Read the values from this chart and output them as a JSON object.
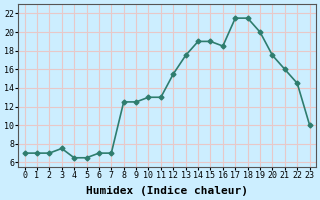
{
  "x": [
    0,
    1,
    2,
    3,
    4,
    5,
    6,
    7,
    8,
    9,
    10,
    11,
    12,
    13,
    14,
    15,
    16,
    17,
    18,
    19,
    20,
    21,
    22,
    23
  ],
  "y": [
    7.0,
    7.0,
    7.0,
    7.5,
    6.5,
    6.5,
    7.0,
    7.0,
    12.5,
    12.5,
    13.0,
    13.0,
    15.5,
    17.5,
    19.0,
    19.0,
    18.5,
    21.5,
    21.5,
    20.0,
    17.5,
    16.0,
    14.5,
    10.0
  ],
  "line_color": "#2e7d6e",
  "marker": "D",
  "marker_size": 2.5,
  "linewidth": 1.2,
  "xlabel": "Humidex (Indice chaleur)",
  "xlabel_fontsize": 8,
  "xlabel_fontfamily": "monospace",
  "ylabel_ticks": [
    6,
    8,
    10,
    12,
    14,
    16,
    18,
    20,
    22
  ],
  "xtick_labels": [
    "0",
    "1",
    "2",
    "3",
    "4",
    "5",
    "6",
    "7",
    "8",
    "9",
    "10",
    "11",
    "12",
    "13",
    "14",
    "15",
    "16",
    "17",
    "18",
    "19",
    "20",
    "21",
    "22",
    "23"
  ],
  "xlim": [
    -0.5,
    23.5
  ],
  "ylim": [
    5.5,
    23.0
  ],
  "bg_color": "#cceeff",
  "grid_color": "#e8c8c8",
  "tick_fontsize": 6,
  "tick_fontfamily": "monospace"
}
